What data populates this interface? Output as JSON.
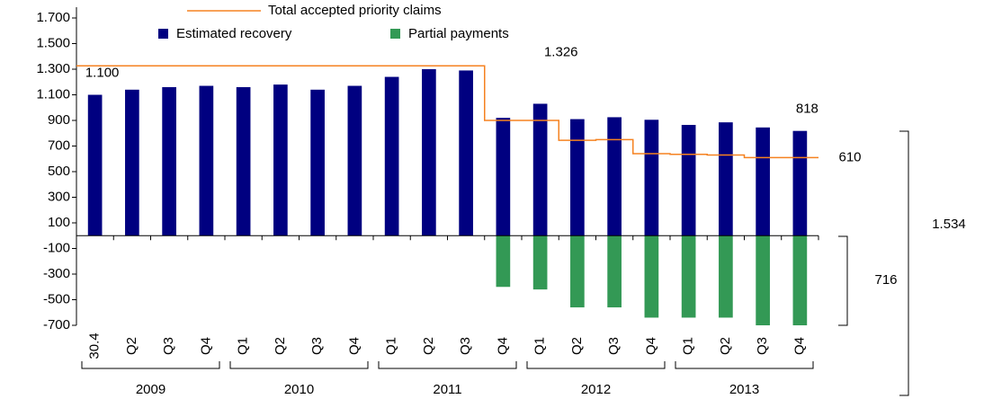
{
  "chart_data": {
    "type": "bar",
    "categories": [
      "30.4",
      "Q2",
      "Q3",
      "Q4",
      "Q1",
      "Q2",
      "Q3",
      "Q4",
      "Q1",
      "Q2",
      "Q3",
      "Q4",
      "Q1",
      "Q2",
      "Q3",
      "Q4",
      "Q1",
      "Q2",
      "Q3",
      "Q4"
    ],
    "groups": [
      "2009",
      "2010",
      "2011",
      "2012",
      "2013"
    ],
    "ylim": [
      -700,
      1700
    ],
    "yticks": [
      -700,
      -500,
      -300,
      -100,
      100,
      300,
      500,
      700,
      900,
      {
        "value": 1100,
        "label": "1.100"
      },
      {
        "value": 1300,
        "label": "1.300"
      },
      {
        "value": 1500,
        "label": "1.500"
      },
      {
        "value": 1700,
        "label": "1.700"
      }
    ],
    "series": [
      {
        "name": "Estimated recovery",
        "color": "#000080",
        "values": [
          1100,
          1140,
          1160,
          1170,
          1160,
          1180,
          1140,
          1170,
          1240,
          1300,
          1290,
          920,
          1030,
          910,
          925,
          905,
          865,
          885,
          845,
          818
        ],
        "value_labels": [
          "1.100",
          null,
          null,
          null,
          null,
          null,
          null,
          null,
          null,
          null,
          null,
          null,
          null,
          null,
          null,
          null,
          null,
          null,
          null,
          "818"
        ]
      },
      {
        "name": "Partial payments",
        "color": "#339955",
        "values": [
          null,
          null,
          null,
          null,
          null,
          null,
          null,
          null,
          null,
          null,
          null,
          -400,
          -420,
          -560,
          -560,
          -640,
          -640,
          -640,
          -700,
          -700
        ]
      },
      {
        "name": "Total accepted priority claims",
        "color": "#f58220",
        "type": "line",
        "values": [
          1326,
          1326,
          1326,
          1326,
          1326,
          1326,
          1326,
          1326,
          1326,
          1326,
          1326,
          900,
          900,
          745,
          750,
          640,
          635,
          630,
          610,
          610
        ],
        "value_labels": [
          null,
          null,
          null,
          null,
          null,
          null,
          null,
          null,
          null,
          null,
          "1.326",
          null,
          null,
          null,
          null,
          null,
          null,
          null,
          null,
          "610"
        ]
      }
    ],
    "annotations": [
      "1.534",
      "716"
    ]
  }
}
